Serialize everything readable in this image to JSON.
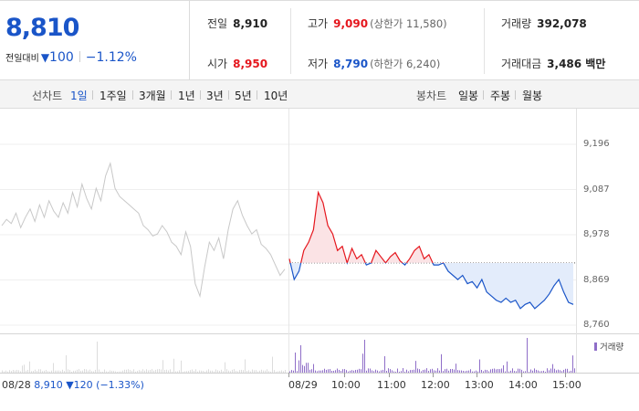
{
  "summary": {
    "price": "8,810",
    "change_label": "전일대비",
    "change_arrow": "▼",
    "change_value": "100",
    "change_rate": "−1.12%",
    "prev_close_label": "전일",
    "prev_close": "8,910",
    "open_label": "시가",
    "open": "8,950",
    "high_label": "고가",
    "high": "9,090",
    "upper_limit": "(상한가 11,580)",
    "low_label": "저가",
    "low": "8,790",
    "lower_limit": "(하한가 6,240)",
    "volume_label": "거래량",
    "volume": "392,078",
    "amount_label": "거래대금",
    "amount": "3,486 백만"
  },
  "toolbar": {
    "line_label": "선차트",
    "line_periods": [
      "1일",
      "1주일",
      "3개월",
      "1년",
      "3년",
      "5년",
      "10년"
    ],
    "active_period": "1일",
    "candle_label": "봉차트",
    "candle_periods": [
      "일봉",
      "주봉",
      "월봉"
    ]
  },
  "colors": {
    "up": "#e5161d",
    "down": "#1a55c8",
    "prev_day": "#c8c8c8",
    "volume": "#8f6ec8"
  },
  "chart_data": {
    "type": "line",
    "y_ticks": [
      "9,196",
      "9,087",
      "8,978",
      "8,869",
      "8,760"
    ],
    "ylim": [
      8760,
      9196
    ],
    "baseline": 8910,
    "x_ticks": [
      "08/29",
      "10:00",
      "11:00",
      "12:00",
      "13:00",
      "14:00",
      "15:00"
    ],
    "previous_day_summary": {
      "date": "08/28",
      "close": "8,910",
      "change": "▼120 (−1.33%)"
    },
    "volume_legend": "거래량",
    "previous_day_series": [
      9000,
      9015,
      9005,
      9030,
      8995,
      9020,
      9040,
      9010,
      9050,
      9020,
      9060,
      9035,
      9020,
      9055,
      9030,
      9080,
      9045,
      9100,
      9065,
      9040,
      9090,
      9060,
      9120,
      9150,
      9090,
      9070,
      9060,
      9050,
      9040,
      9030,
      9000,
      8990,
      8975,
      8980,
      9000,
      8985,
      8960,
      8950,
      8930,
      8985,
      8950,
      8860,
      8830,
      8900,
      8960,
      8940,
      8970,
      8920,
      8990,
      9040,
      9060,
      9025,
      9000,
      8980,
      8990,
      8955,
      8945,
      8930,
      8905,
      8880,
      8895
    ],
    "intraday_series": [
      8920,
      8870,
      8890,
      8940,
      8960,
      8990,
      9080,
      9055,
      9000,
      8980,
      8940,
      8950,
      8910,
      8945,
      8920,
      8930,
      8905,
      8910,
      8940,
      8925,
      8910,
      8925,
      8935,
      8915,
      8905,
      8920,
      8940,
      8950,
      8920,
      8930,
      8905,
      8905,
      8910,
      8890,
      8880,
      8870,
      8880,
      8860,
      8865,
      8850,
      8870,
      8840,
      8830,
      8820,
      8815,
      8825,
      8815,
      8820,
      8800,
      8810,
      8815,
      8800,
      8810,
      8820,
      8835,
      8855,
      8870,
      8840,
      8815,
      8810
    ]
  }
}
